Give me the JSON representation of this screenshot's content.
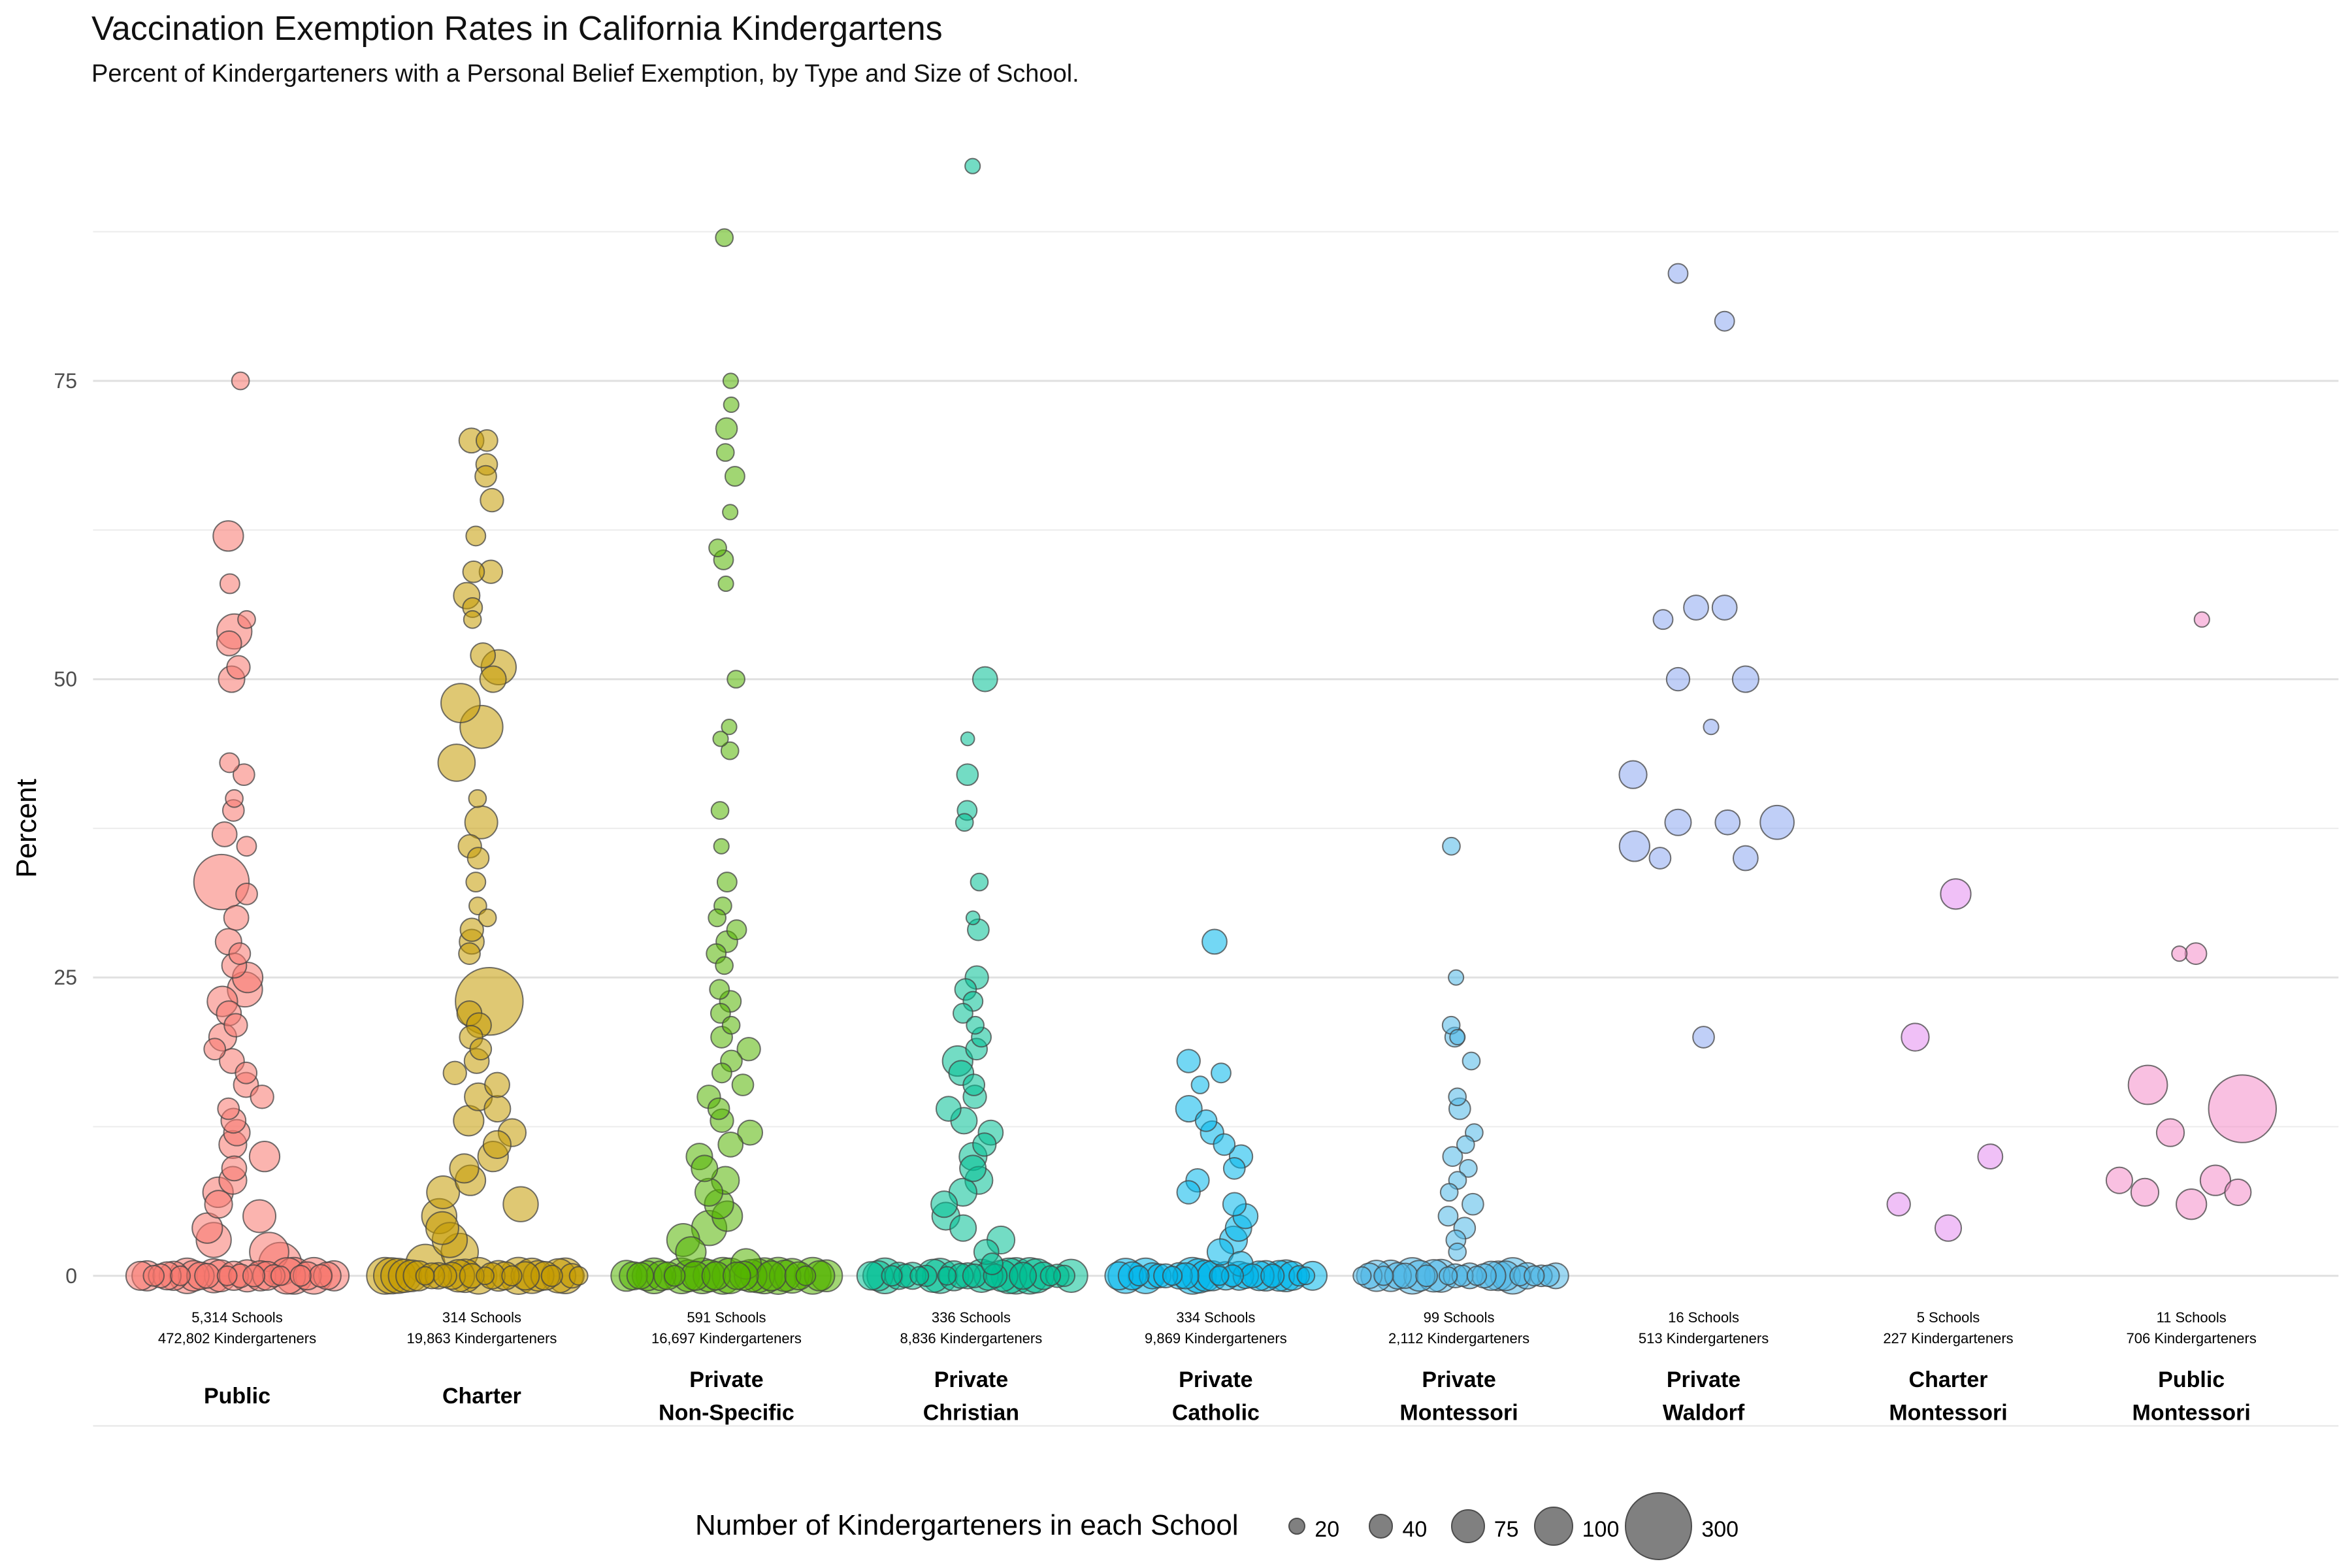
{
  "title": "Vaccination Exemption Rates in California Kindergartens",
  "subtitle": "Percent of Kindergarteners with a Personal Belief Exemption, by Type and Size of School.",
  "chart_data": {
    "type": "scatter",
    "subtype": "beeswarm / bubble strip chart",
    "ylabel": "Percent",
    "ylim": [
      0,
      93
    ],
    "yticks": [
      0,
      25,
      50,
      75
    ],
    "grid": true,
    "legend_position": "bottom",
    "legend": {
      "title": "Number of Kindergarteners in each School",
      "sizes": [
        {
          "label": "20",
          "value": 20
        },
        {
          "label": "40",
          "value": 40
        },
        {
          "label": "75",
          "value": 75
        },
        {
          "label": "100",
          "value": 100
        },
        {
          "label": "300",
          "value": 300
        }
      ]
    },
    "categories": [
      {
        "name_lines": [
          "Public"
        ],
        "schools": "5,314 Schools",
        "kids": "472,802 Kindergarteners",
        "color": "#F8766D",
        "points": [
          [
            75,
            20
          ],
          [
            62,
            60
          ],
          [
            58,
            25
          ],
          [
            55,
            20
          ],
          [
            54,
            80
          ],
          [
            53,
            40
          ],
          [
            51,
            35
          ],
          [
            50,
            45
          ],
          [
            43,
            25
          ],
          [
            42,
            30
          ],
          [
            40,
            20
          ],
          [
            39,
            30
          ],
          [
            37,
            40
          ],
          [
            36,
            25
          ],
          [
            33,
            200
          ],
          [
            32,
            30
          ],
          [
            30,
            40
          ],
          [
            28,
            45
          ],
          [
            27,
            30
          ],
          [
            26,
            40
          ],
          [
            25,
            60
          ],
          [
            24,
            80
          ],
          [
            23,
            60
          ],
          [
            22,
            40
          ],
          [
            21,
            35
          ],
          [
            20,
            50
          ],
          [
            19,
            30
          ],
          [
            18,
            40
          ],
          [
            17,
            30
          ],
          [
            16,
            40
          ],
          [
            15,
            35
          ],
          [
            14,
            30
          ],
          [
            13,
            40
          ],
          [
            12,
            45
          ],
          [
            11,
            50
          ],
          [
            10,
            60
          ],
          [
            9,
            40
          ],
          [
            8,
            50
          ],
          [
            7,
            60
          ],
          [
            6,
            50
          ],
          [
            5,
            70
          ],
          [
            4,
            60
          ],
          [
            3,
            80
          ],
          [
            2,
            100
          ],
          [
            1,
            120
          ]
        ],
        "zero": {
          "n": 30,
          "halfwidth": 150
        }
      },
      {
        "name_lines": [
          "Charter"
        ],
        "schools": "314 Schools",
        "kids": "19,863 Kindergarteners",
        "color": "#C49A00",
        "points": [
          [
            70,
            40
          ],
          [
            70,
            30
          ],
          [
            68,
            30
          ],
          [
            67,
            30
          ],
          [
            65,
            35
          ],
          [
            62,
            25
          ],
          [
            59,
            35
          ],
          [
            59,
            30
          ],
          [
            57,
            45
          ],
          [
            56,
            25
          ],
          [
            55,
            20
          ],
          [
            52,
            40
          ],
          [
            51,
            80
          ],
          [
            50,
            45
          ],
          [
            48,
            100
          ],
          [
            46,
            120
          ],
          [
            43,
            90
          ],
          [
            40,
            20
          ],
          [
            38,
            70
          ],
          [
            36,
            35
          ],
          [
            35,
            30
          ],
          [
            33,
            25
          ],
          [
            31,
            20
          ],
          [
            30,
            20
          ],
          [
            29,
            35
          ],
          [
            28,
            40
          ],
          [
            27,
            30
          ],
          [
            23,
            300
          ],
          [
            22,
            40
          ],
          [
            21,
            40
          ],
          [
            20,
            35
          ],
          [
            19,
            30
          ],
          [
            18,
            40
          ],
          [
            17,
            35
          ],
          [
            16,
            40
          ],
          [
            15,
            50
          ],
          [
            14,
            45
          ],
          [
            13,
            60
          ],
          [
            12,
            50
          ],
          [
            11,
            50
          ],
          [
            10,
            60
          ],
          [
            9,
            55
          ],
          [
            8,
            60
          ],
          [
            7,
            70
          ],
          [
            6,
            80
          ],
          [
            5,
            80
          ],
          [
            4,
            70
          ],
          [
            3,
            80
          ],
          [
            2,
            90
          ],
          [
            1,
            100
          ]
        ],
        "zero": {
          "n": 30,
          "halfwidth": 150
        }
      },
      {
        "name_lines": [
          "Private",
          "Non-Specific"
        ],
        "schools": "591 Schools",
        "kids": "16,697 Kindergarteners",
        "color": "#53B400",
        "points": [
          [
            87,
            20
          ],
          [
            75,
            15
          ],
          [
            73,
            15
          ],
          [
            71,
            30
          ],
          [
            69,
            20
          ],
          [
            67,
            25
          ],
          [
            64,
            15
          ],
          [
            61,
            20
          ],
          [
            60,
            25
          ],
          [
            58,
            15
          ],
          [
            50,
            20
          ],
          [
            46,
            15
          ],
          [
            45,
            15
          ],
          [
            44,
            20
          ],
          [
            39,
            20
          ],
          [
            36,
            15
          ],
          [
            33,
            25
          ],
          [
            31,
            20
          ],
          [
            30,
            20
          ],
          [
            29,
            25
          ],
          [
            28,
            30
          ],
          [
            27,
            25
          ],
          [
            26,
            20
          ],
          [
            24,
            25
          ],
          [
            23,
            30
          ],
          [
            22,
            25
          ],
          [
            21,
            20
          ],
          [
            20,
            30
          ],
          [
            19,
            35
          ],
          [
            18,
            30
          ],
          [
            17,
            25
          ],
          [
            16,
            30
          ],
          [
            15,
            35
          ],
          [
            14,
            30
          ],
          [
            13,
            35
          ],
          [
            12,
            40
          ],
          [
            11,
            40
          ],
          [
            10,
            45
          ],
          [
            9,
            45
          ],
          [
            8,
            50
          ],
          [
            7,
            50
          ],
          [
            6,
            55
          ],
          [
            5,
            60
          ],
          [
            4,
            80
          ],
          [
            3,
            70
          ],
          [
            2,
            60
          ],
          [
            1,
            60
          ]
        ],
        "zero": {
          "n": 30,
          "halfwidth": 155
        }
      },
      {
        "name_lines": [
          "Private",
          "Christian"
        ],
        "schools": "336 Schools",
        "kids": "8,836 Kindergarteners",
        "color": "#00C094",
        "points": [
          [
            93,
            15
          ],
          [
            50,
            40
          ],
          [
            45,
            12
          ],
          [
            42,
            30
          ],
          [
            39,
            25
          ],
          [
            38,
            20
          ],
          [
            33,
            20
          ],
          [
            30,
            12
          ],
          [
            29,
            30
          ],
          [
            25,
            35
          ],
          [
            24,
            30
          ],
          [
            23,
            25
          ],
          [
            22,
            25
          ],
          [
            21,
            20
          ],
          [
            20,
            25
          ],
          [
            19,
            30
          ],
          [
            18,
            60
          ],
          [
            17,
            40
          ],
          [
            16,
            30
          ],
          [
            15,
            35
          ],
          [
            14,
            40
          ],
          [
            13,
            45
          ],
          [
            12,
            40
          ],
          [
            11,
            35
          ],
          [
            10,
            50
          ],
          [
            9,
            45
          ],
          [
            8,
            50
          ],
          [
            7,
            50
          ],
          [
            6,
            45
          ],
          [
            5,
            50
          ],
          [
            4,
            45
          ],
          [
            3,
            50
          ],
          [
            2,
            40
          ],
          [
            1,
            30
          ]
        ],
        "zero": {
          "n": 30,
          "halfwidth": 155
        }
      },
      {
        "name_lines": [
          "Private",
          "Catholic"
        ],
        "schools": "334 Schools",
        "kids": "9,869 Kindergarteners",
        "color": "#00B6EB",
        "points": [
          [
            28,
            40
          ],
          [
            18,
            35
          ],
          [
            17,
            25
          ],
          [
            16,
            20
          ],
          [
            14,
            45
          ],
          [
            13,
            30
          ],
          [
            12,
            35
          ],
          [
            11,
            30
          ],
          [
            10,
            35
          ],
          [
            9,
            30
          ],
          [
            8,
            35
          ],
          [
            7,
            35
          ],
          [
            6,
            35
          ],
          [
            5,
            40
          ],
          [
            4,
            45
          ],
          [
            3,
            50
          ],
          [
            2,
            45
          ],
          [
            1,
            40
          ]
        ],
        "zero": {
          "n": 30,
          "halfwidth": 150
        }
      },
      {
        "name_lines": [
          "Private",
          "Montessori"
        ],
        "schools": "99 Schools",
        "kids": "2,112 Kindergarteners",
        "color": "#4FB8E8",
        "points": [
          [
            36,
            20
          ],
          [
            25,
            15
          ],
          [
            21,
            20
          ],
          [
            20,
            15
          ],
          [
            20,
            25
          ],
          [
            18,
            20
          ],
          [
            15,
            20
          ],
          [
            14,
            30
          ],
          [
            12,
            20
          ],
          [
            11,
            20
          ],
          [
            10,
            25
          ],
          [
            9,
            20
          ],
          [
            8,
            20
          ],
          [
            7,
            20
          ],
          [
            6,
            30
          ],
          [
            5,
            25
          ],
          [
            4,
            30
          ],
          [
            3,
            25
          ],
          [
            2,
            20
          ]
        ],
        "zero": {
          "n": 28,
          "halfwidth": 150
        }
      },
      {
        "name_lines": [
          "Private",
          "Waldorf"
        ],
        "schools": "16 Schools",
        "kids": "513 Kindergarteners",
        "color": "#8DA8F0",
        "xy": [
          [
            1118,
            84,
            25
          ],
          [
            1149,
            80,
            25
          ],
          [
            1108,
            55,
            25
          ],
          [
            1130,
            56,
            40
          ],
          [
            1149,
            56,
            40
          ],
          [
            1118,
            50,
            35
          ],
          [
            1163,
            50,
            45
          ],
          [
            1140,
            46,
            15
          ],
          [
            1088,
            42,
            50
          ],
          [
            1089,
            36,
            60
          ],
          [
            1118,
            38,
            45
          ],
          [
            1151,
            38,
            40
          ],
          [
            1184,
            38,
            75
          ],
          [
            1106,
            35,
            30
          ],
          [
            1163,
            35,
            40
          ],
          [
            1135,
            20,
            30
          ]
        ],
        "zero": {
          "n": 0,
          "halfwidth": 0
        }
      },
      {
        "name_lines": [
          "Charter",
          "Montessori"
        ],
        "schools": "5 Schools",
        "kids": "227 Kindergarteners",
        "color": "#E48CF0",
        "xy": [
          [
            1303,
            32,
            60
          ],
          [
            1276,
            20,
            50
          ],
          [
            1326,
            10,
            40
          ],
          [
            1265,
            6,
            35
          ],
          [
            1298,
            4,
            45
          ]
        ],
        "zero": {
          "n": 0,
          "halfwidth": 0
        }
      },
      {
        "name_lines": [
          "Public",
          "Montessori"
        ],
        "schools": "11 Schools",
        "kids": "706 Kindergarteners",
        "color": "#F48CC8",
        "xy": [
          [
            1467,
            55,
            15
          ],
          [
            1452,
            27,
            15
          ],
          [
            1463,
            27,
            30
          ],
          [
            1431,
            16,
            100
          ],
          [
            1494,
            14,
            300
          ],
          [
            1446,
            12,
            50
          ],
          [
            1412,
            8,
            45
          ],
          [
            1429,
            7,
            50
          ],
          [
            1476,
            8,
            60
          ],
          [
            1460,
            6,
            60
          ],
          [
            1491,
            7,
            45
          ]
        ],
        "zero": {
          "n": 0,
          "halfwidth": 0
        }
      }
    ]
  }
}
